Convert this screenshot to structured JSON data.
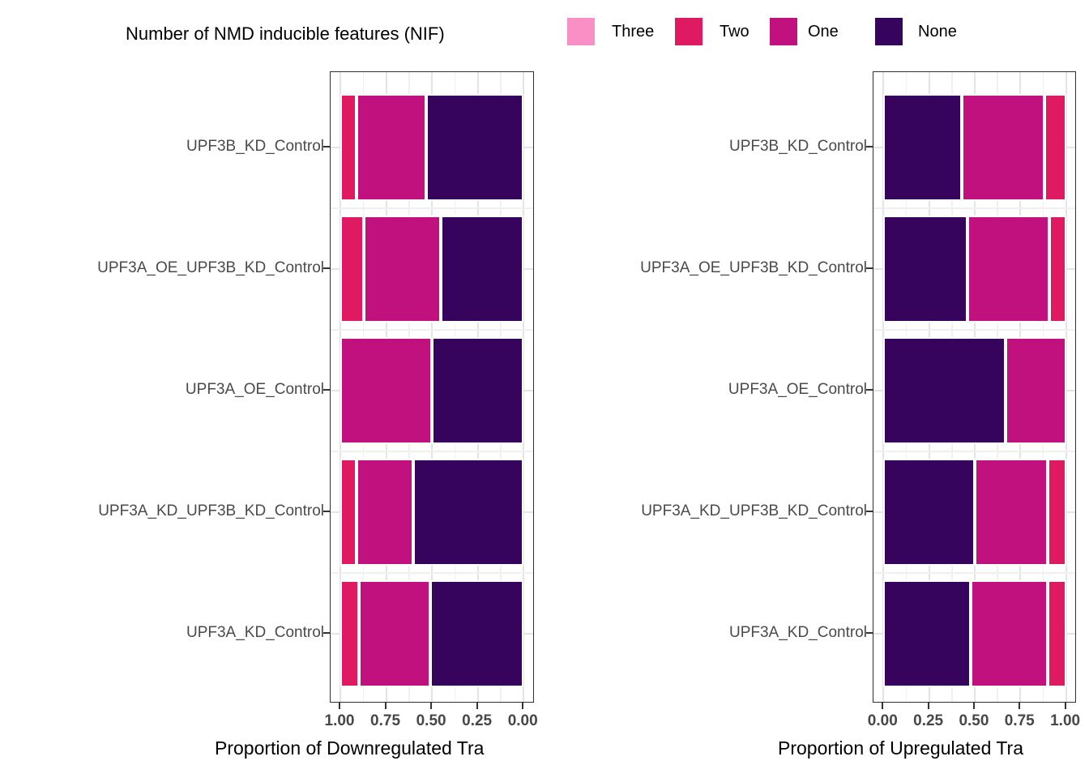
{
  "legend": {
    "title": "Number of NMD inducible features (NIF)",
    "items": [
      {
        "label": "Three",
        "color": "#FA8FC5"
      },
      {
        "label": "Two",
        "color": "#E01A62"
      },
      {
        "label": "One",
        "color": "#C0117E"
      },
      {
        "label": "None",
        "color": "#36045C"
      }
    ]
  },
  "chart_data": [
    {
      "type": "bar",
      "orientation": "horizontal",
      "stacked": true,
      "panel": "left",
      "xlabel": "Proportion of Downregulated Tra",
      "x_axis_reversed": true,
      "xlim": [
        0,
        1
      ],
      "x_ticks": [
        "1.00",
        "0.75",
        "0.50",
        "0.25",
        "0.00"
      ],
      "grid": true,
      "categories": [
        "UPF3B_KD_Control",
        "UPF3A_OE_UPF3B_KD_Control",
        "UPF3A_OE_Control",
        "UPF3A_KD_UPF3B_KD_Control",
        "UPF3A_KD_Control"
      ],
      "stack_order_from_zero": [
        "None",
        "One",
        "Two",
        "Three"
      ],
      "series": [
        {
          "name": "Three",
          "values": [
            0,
            0,
            0,
            0,
            0
          ]
        },
        {
          "name": "Two",
          "values": [
            0.09,
            0.13,
            0.0,
            0.09,
            0.1
          ]
        },
        {
          "name": "One",
          "values": [
            0.38,
            0.42,
            0.5,
            0.31,
            0.39
          ]
        },
        {
          "name": "None",
          "values": [
            0.53,
            0.45,
            0.5,
            0.6,
            0.51
          ]
        }
      ]
    },
    {
      "type": "bar",
      "orientation": "horizontal",
      "stacked": true,
      "panel": "right",
      "xlabel": "Proportion of Upregulated Tra",
      "x_axis_reversed": false,
      "xlim": [
        0,
        1
      ],
      "x_ticks": [
        "0.00",
        "0.25",
        "0.50",
        "0.75",
        "1.00"
      ],
      "grid": true,
      "categories": [
        "UPF3B_KD_Control",
        "UPF3A_OE_UPF3B_KD_Control",
        "UPF3A_OE_Control",
        "UPF3A_KD_UPF3B_KD_Control",
        "UPF3A_KD_Control"
      ],
      "stack_order_from_zero": [
        "None",
        "One",
        "Two",
        "Three"
      ],
      "series": [
        {
          "name": "Three",
          "values": [
            0,
            0,
            0,
            0,
            0
          ]
        },
        {
          "name": "Two",
          "values": [
            0.12,
            0.09,
            0.0,
            0.1,
            0.1
          ]
        },
        {
          "name": "One",
          "values": [
            0.45,
            0.45,
            0.33,
            0.4,
            0.42
          ]
        },
        {
          "name": "None",
          "values": [
            0.43,
            0.46,
            0.67,
            0.5,
            0.48
          ]
        }
      ]
    }
  ]
}
